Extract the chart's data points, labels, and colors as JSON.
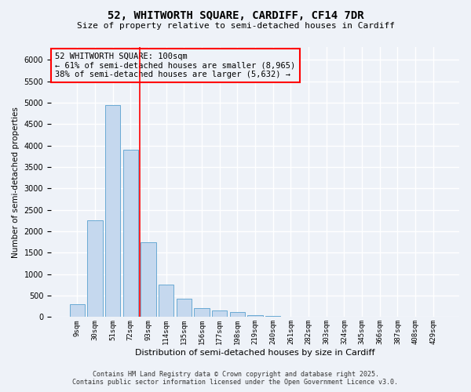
{
  "title1": "52, WHITWORTH SQUARE, CARDIFF, CF14 7DR",
  "title2": "Size of property relative to semi-detached houses in Cardiff",
  "xlabel": "Distribution of semi-detached houses by size in Cardiff",
  "ylabel": "Number of semi-detached properties",
  "categories": [
    "9sqm",
    "30sqm",
    "51sqm",
    "72sqm",
    "93sqm",
    "114sqm",
    "135sqm",
    "156sqm",
    "177sqm",
    "198sqm",
    "219sqm",
    "240sqm",
    "261sqm",
    "282sqm",
    "303sqm",
    "324sqm",
    "345sqm",
    "366sqm",
    "387sqm",
    "408sqm",
    "429sqm"
  ],
  "values": [
    300,
    2250,
    4950,
    3900,
    1750,
    750,
    420,
    200,
    150,
    120,
    50,
    20,
    0,
    0,
    0,
    0,
    0,
    0,
    0,
    0,
    0
  ],
  "bar_fill_color": "#c5d8ee",
  "bar_edge_color": "#6aaad4",
  "annotation_box_text": "52 WHITWORTH SQUARE: 100sqm\n← 61% of semi-detached houses are smaller (8,965)\n38% of semi-detached houses are larger (5,632) →",
  "vline_x": 3.5,
  "ylim": [
    0,
    6300
  ],
  "yticks": [
    0,
    500,
    1000,
    1500,
    2000,
    2500,
    3000,
    3500,
    4000,
    4500,
    5000,
    5500,
    6000
  ],
  "footnote1": "Contains HM Land Registry data © Crown copyright and database right 2025.",
  "footnote2": "Contains public sector information licensed under the Open Government Licence v3.0.",
  "background_color": "#eef2f8",
  "grid_color": "#ffffff"
}
